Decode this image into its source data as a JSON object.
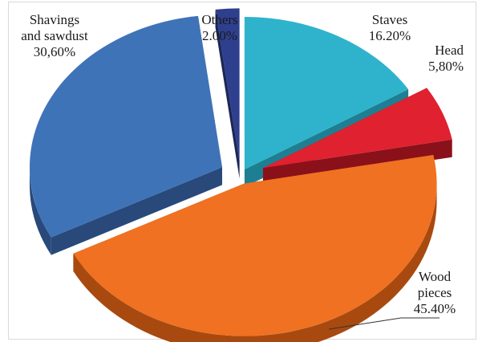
{
  "chart_data": {
    "type": "pie",
    "style": "3d-exploded",
    "slices": [
      {
        "label_lines": [
          "Staves"
        ],
        "value_text": "16.20%",
        "value": 16.2,
        "color": "#2fb3cc",
        "side_color": "#1f7f92"
      },
      {
        "label_lines": [
          "Head"
        ],
        "value_text": "5,80%",
        "value": 5.8,
        "color": "#e02130",
        "side_color": "#8a1119"
      },
      {
        "label_lines": [
          "Wood",
          "pieces"
        ],
        "value_text": "45.40%",
        "value": 45.4,
        "color": "#f07121",
        "side_color": "#a84a10"
      },
      {
        "label_lines": [
          "Shavings",
          "and sawdust"
        ],
        "value_text": "30,60%",
        "value": 30.6,
        "color": "#3f73b8",
        "side_color": "#28497a"
      },
      {
        "label_lines": [
          "Others"
        ],
        "value_text": "2.00%",
        "value": 2.0,
        "color": "#2e3f8e",
        "side_color": "#1c2758"
      }
    ],
    "legend": "none"
  }
}
